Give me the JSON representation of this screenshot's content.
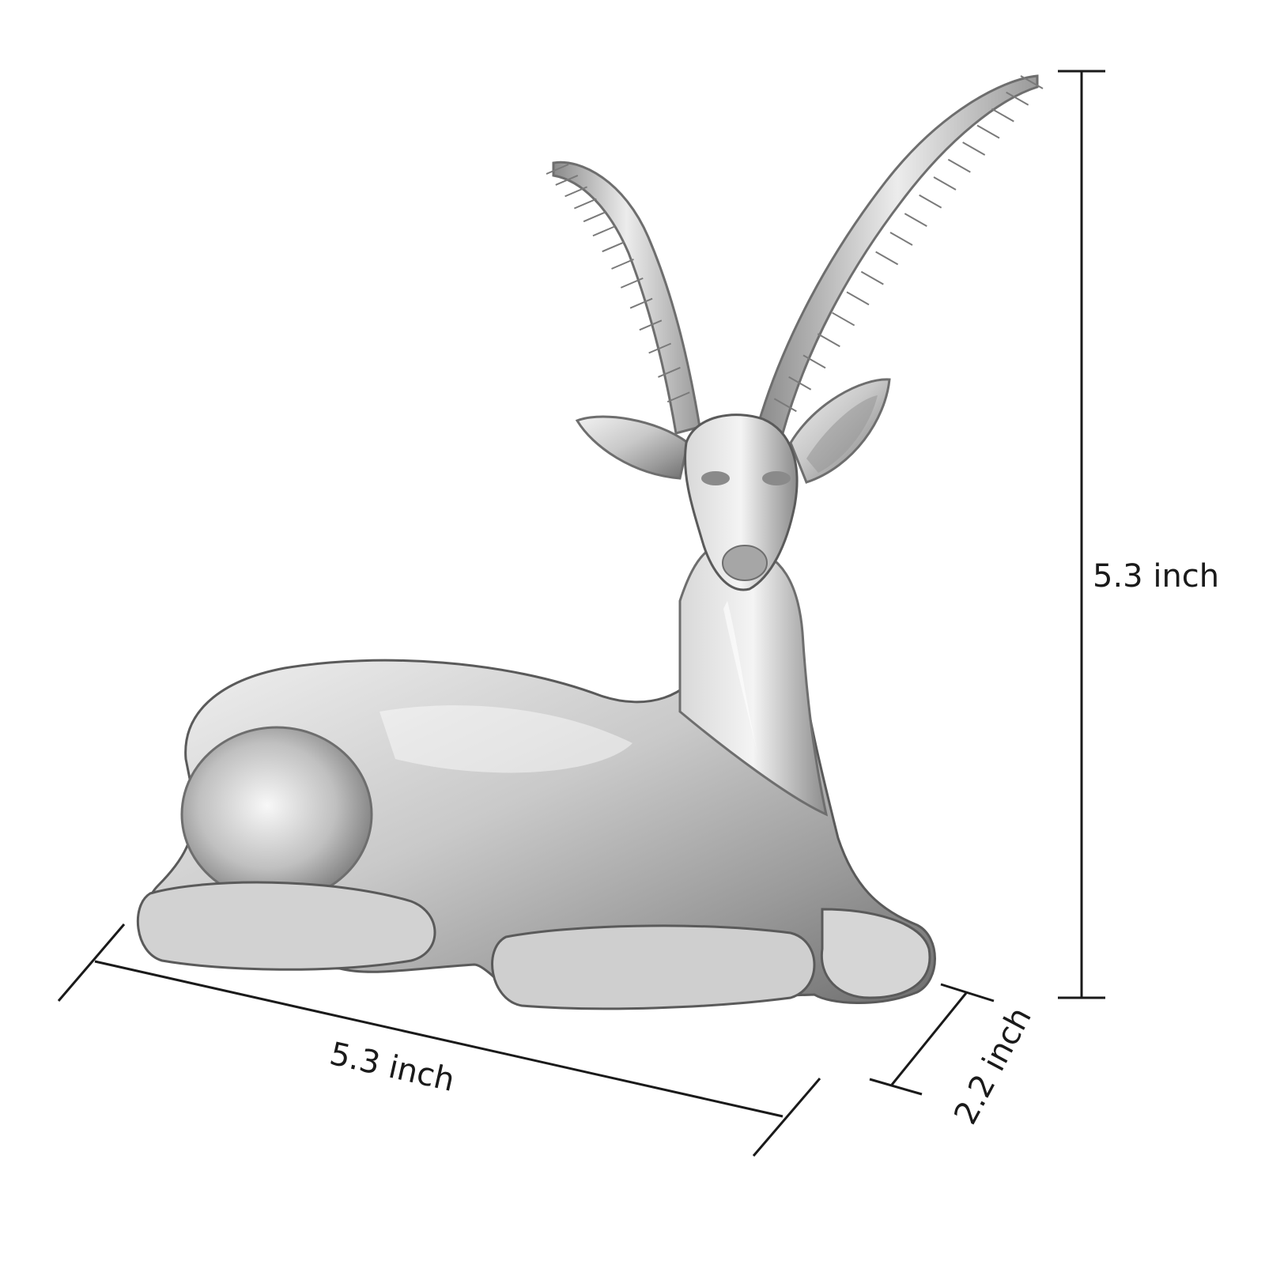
{
  "dimensions": {
    "height": "5.3 inch",
    "length": "5.3 inch",
    "depth": "2.2 inch"
  },
  "colors": {
    "background": "#ffffff",
    "line": "#1a1a1a",
    "silver_light": "#e4e4e4",
    "silver_mid": "#b4b4b4",
    "silver_dark": "#6e6e6e"
  }
}
